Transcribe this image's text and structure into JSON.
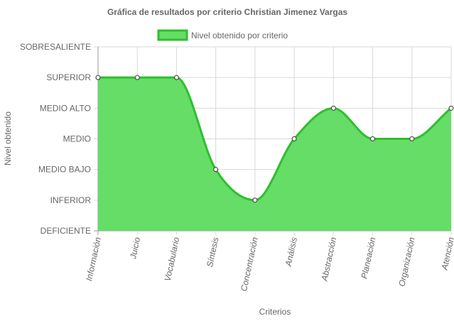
{
  "chart_data": {
    "type": "area",
    "title": "Gráfica de resultados por criterio Christian Jimenez Vargas",
    "xlabel": "Criterios",
    "ylabel": "Nivel obtenido",
    "y_levels": [
      "DEFICIENTE",
      "INFERIOR",
      "MEDIO BAJO",
      "MEDIO",
      "MEDIO ALTO",
      "SUPERIOR",
      "SOBRESALIENTE"
    ],
    "categories": [
      "Información",
      "Juicio",
      "Vocabulario",
      "Síntesis",
      "Concentración",
      "Análisis",
      "Abstracción",
      "Planeación",
      "Organización",
      "Atención"
    ],
    "series": [
      {
        "name": "Nivel obtenido por criterio",
        "values": [
          5,
          5,
          5,
          2,
          1,
          3,
          4,
          3,
          3,
          4
        ]
      }
    ],
    "ylim": [
      0,
      6
    ],
    "grid": true,
    "legend_position": "top",
    "colors": {
      "fill": "#66dd66",
      "line": "#2ebf2e",
      "point_fill": "#ffffff",
      "point_stroke": "#333333",
      "grid": "#d9d9d9",
      "axis": "#999999"
    }
  }
}
